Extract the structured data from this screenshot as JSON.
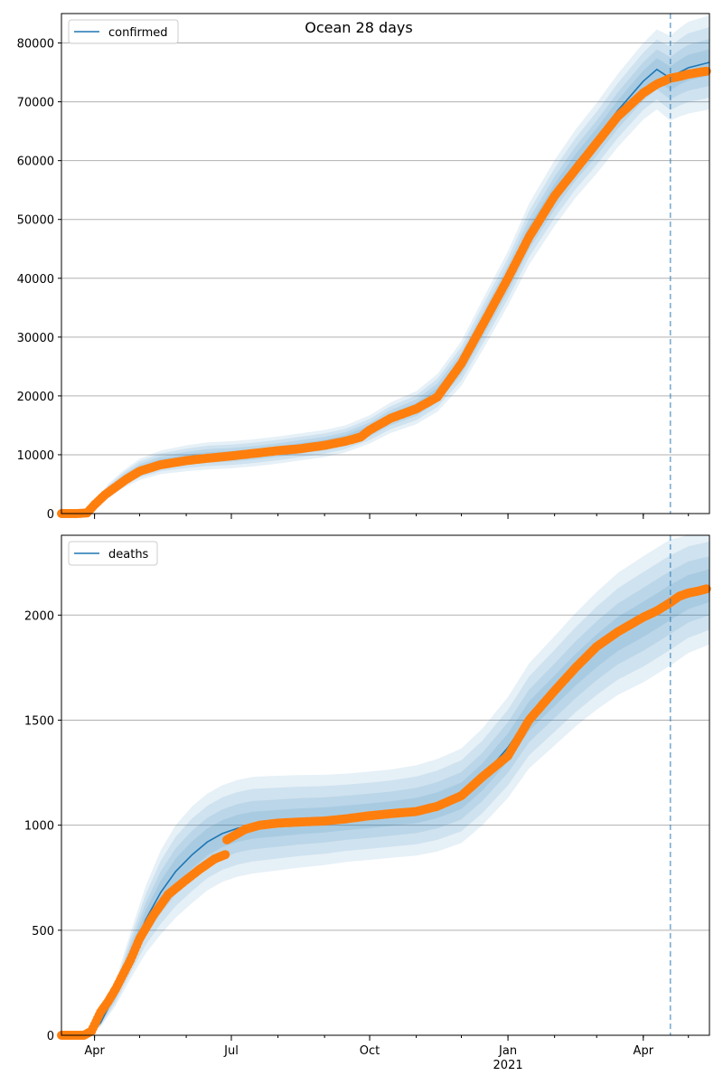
{
  "title": "Ocean 28 days",
  "colors": {
    "model_line": "#1f77b4",
    "observed": "#ff7f0e",
    "band": "#1f77b4",
    "grid": "#b0b0b0",
    "cutoff_line": "#1f77b4"
  },
  "chart_data": [
    {
      "type": "line",
      "panel": "top",
      "title": "Ocean 28 days",
      "legend": [
        "confirmed"
      ],
      "legend_position": "top-left",
      "grid": "y",
      "xlim": [
        "2020-03-10",
        "2021-05-15"
      ],
      "ylim": [
        0,
        85000
      ],
      "yticks": [
        0,
        10000,
        20000,
        30000,
        40000,
        50000,
        60000,
        70000,
        80000
      ],
      "xticks": [
        {
          "date": "2020-04-01",
          "label": "Apr",
          "sublabel": ""
        },
        {
          "date": "2020-07-01",
          "label": "Jul",
          "sublabel": ""
        },
        {
          "date": "2020-10-01",
          "label": "Oct",
          "sublabel": ""
        },
        {
          "date": "2021-01-01",
          "label": "Jan",
          "sublabel": "2021"
        },
        {
          "date": "2021-04-01",
          "label": "Apr",
          "sublabel": ""
        }
      ],
      "cutoff_date": "2021-04-19",
      "series": [
        {
          "name": "confirmed",
          "role": "model",
          "x": [
            "2020-03-10",
            "2020-03-25",
            "2020-04-01",
            "2020-04-10",
            "2020-04-20",
            "2020-05-01",
            "2020-05-15",
            "2020-06-01",
            "2020-06-15",
            "2020-07-01",
            "2020-07-15",
            "2020-08-01",
            "2020-08-15",
            "2020-09-01",
            "2020-09-15",
            "2020-10-01",
            "2020-10-15",
            "2020-11-01",
            "2020-11-15",
            "2020-12-01",
            "2020-12-15",
            "2021-01-01",
            "2021-01-15",
            "2021-02-01",
            "2021-02-15",
            "2021-03-01",
            "2021-03-15",
            "2021-04-01",
            "2021-04-10",
            "2021-04-19",
            "2021-04-25",
            "2021-05-01",
            "2021-05-15"
          ],
          "y": [
            0,
            0,
            1500,
            3800,
            5800,
            7500,
            8700,
            9400,
            9800,
            10000,
            10300,
            10800,
            11300,
            11900,
            12700,
            14300,
            16300,
            18000,
            20500,
            25500,
            32000,
            40000,
            47500,
            54500,
            59500,
            63800,
            68500,
            73500,
            75500,
            74000,
            75000,
            75800,
            76700
          ]
        },
        {
          "name": "",
          "role": "uncertainty-band",
          "x": [
            "2020-03-10",
            "2020-03-25",
            "2020-04-01",
            "2020-04-10",
            "2020-04-20",
            "2020-05-01",
            "2020-05-15",
            "2020-06-01",
            "2020-06-15",
            "2020-07-01",
            "2020-07-15",
            "2020-08-01",
            "2020-08-15",
            "2020-09-01",
            "2020-09-15",
            "2020-10-01",
            "2020-10-15",
            "2020-11-01",
            "2020-11-15",
            "2020-12-01",
            "2020-12-15",
            "2021-01-01",
            "2021-01-15",
            "2021-02-01",
            "2021-02-15",
            "2021-03-01",
            "2021-03-15",
            "2021-04-01",
            "2021-04-10",
            "2021-04-19",
            "2021-04-25",
            "2021-05-01",
            "2021-05-15"
          ],
          "outer_spread": [
            0,
            0,
            700,
            1200,
            1500,
            1800,
            2000,
            2200,
            2300,
            2300,
            2300,
            2300,
            2300,
            2300,
            2300,
            2400,
            2600,
            2800,
            3200,
            3800,
            4300,
            4600,
            5200,
            5600,
            5800,
            6000,
            6200,
            6500,
            6800,
            7200,
            7500,
            7800,
            8000
          ]
        },
        {
          "name": "",
          "role": "observed",
          "x": [
            "2020-03-10",
            "2020-03-20",
            "2020-03-27",
            "2020-04-01",
            "2020-04-08",
            "2020-04-15",
            "2020-04-22",
            "2020-05-01",
            "2020-05-15",
            "2020-06-01",
            "2020-06-15",
            "2020-07-01",
            "2020-07-15",
            "2020-08-01",
            "2020-08-15",
            "2020-09-01",
            "2020-09-15",
            "2020-09-25",
            "2020-10-01",
            "2020-10-15",
            "2020-11-01",
            "2020-11-15",
            "2020-12-01",
            "2020-12-15",
            "2021-01-01",
            "2021-01-15",
            "2021-02-01",
            "2021-02-15",
            "2021-03-01",
            "2021-03-15",
            "2021-04-01",
            "2021-04-10",
            "2021-04-19",
            "2021-04-25",
            "2021-05-01",
            "2021-05-08",
            "2021-05-13"
          ],
          "y": [
            0,
            0,
            100,
            1500,
            3200,
            4500,
            5800,
            7200,
            8300,
            9000,
            9400,
            9800,
            10200,
            10700,
            11000,
            11600,
            12300,
            13000,
            14200,
            16200,
            17800,
            19800,
            25500,
            32000,
            40000,
            47000,
            54000,
            58500,
            63000,
            67500,
            71500,
            73000,
            74000,
            74300,
            74700,
            75000,
            75200
          ]
        }
      ]
    },
    {
      "type": "line",
      "panel": "bottom",
      "legend": [
        "deaths"
      ],
      "legend_position": "top-left",
      "grid": "y",
      "xlim": [
        "2020-03-10",
        "2021-05-15"
      ],
      "ylim": [
        0,
        2380
      ],
      "yticks": [
        0,
        500,
        1000,
        1500,
        2000
      ],
      "xticks": [
        {
          "date": "2020-04-01",
          "label": "Apr",
          "sublabel": ""
        },
        {
          "date": "2020-07-01",
          "label": "Jul",
          "sublabel": ""
        },
        {
          "date": "2020-10-01",
          "label": "Oct",
          "sublabel": ""
        },
        {
          "date": "2021-01-01",
          "label": "Jan",
          "sublabel": "2021"
        },
        {
          "date": "2021-04-01",
          "label": "Apr",
          "sublabel": ""
        }
      ],
      "cutoff_date": "2021-04-19",
      "series": [
        {
          "name": "deaths",
          "role": "model",
          "x": [
            "2020-03-10",
            "2020-03-28",
            "2020-04-05",
            "2020-04-15",
            "2020-04-25",
            "2020-05-05",
            "2020-05-15",
            "2020-05-25",
            "2020-06-05",
            "2020-06-15",
            "2020-06-25",
            "2020-07-05",
            "2020-07-15",
            "2020-08-01",
            "2020-08-15",
            "2020-09-01",
            "2020-09-15",
            "2020-10-01",
            "2020-10-15",
            "2020-11-01",
            "2020-11-15",
            "2020-12-01",
            "2020-12-15",
            "2021-01-01",
            "2021-01-15",
            "2021-02-01",
            "2021-02-15",
            "2021-03-01",
            "2021-03-15",
            "2021-04-01",
            "2021-04-10",
            "2021-04-19",
            "2021-05-01",
            "2021-05-15"
          ],
          "y": [
            0,
            0,
            60,
            200,
            380,
            550,
            680,
            780,
            860,
            920,
            960,
            985,
            1000,
            1010,
            1018,
            1025,
            1035,
            1045,
            1055,
            1070,
            1095,
            1140,
            1230,
            1370,
            1520,
            1640,
            1740,
            1830,
            1910,
            1980,
            2020,
            2060,
            2110,
            2140
          ]
        },
        {
          "name": "",
          "role": "uncertainty-band",
          "x": [
            "2020-03-10",
            "2020-03-28",
            "2020-04-05",
            "2020-04-15",
            "2020-04-25",
            "2020-05-05",
            "2020-05-15",
            "2020-05-25",
            "2020-06-05",
            "2020-06-15",
            "2020-06-25",
            "2020-07-05",
            "2020-07-15",
            "2020-08-01",
            "2020-08-15",
            "2020-09-01",
            "2020-09-15",
            "2020-10-01",
            "2020-10-15",
            "2020-11-01",
            "2020-11-15",
            "2020-12-01",
            "2020-12-15",
            "2021-01-01",
            "2021-01-15",
            "2021-02-01",
            "2021-02-15",
            "2021-03-01",
            "2021-03-15",
            "2021-04-01",
            "2021-04-10",
            "2021-04-19",
            "2021-05-01",
            "2021-05-15"
          ],
          "outer_spread": [
            0,
            0,
            20,
            60,
            110,
            160,
            200,
            220,
            230,
            230,
            230,
            230,
            230,
            225,
            220,
            215,
            210,
            210,
            210,
            215,
            220,
            225,
            230,
            240,
            250,
            260,
            270,
            280,
            290,
            300,
            300,
            300,
            290,
            280
          ]
        },
        {
          "name": "",
          "role": "observed",
          "x": [
            "2020-03-10",
            "2020-03-25",
            "2020-03-30",
            "2020-04-05",
            "2020-04-10",
            "2020-04-15",
            "2020-04-20",
            "2020-04-25",
            "2020-05-01",
            "2020-05-10",
            "2020-05-20",
            "2020-06-01",
            "2020-06-10",
            "2020-06-20",
            "2020-06-27",
            "2020-06-28",
            "2020-07-10",
            "2020-07-20",
            "2020-08-01",
            "2020-08-15",
            "2020-09-01",
            "2020-09-15",
            "2020-10-01",
            "2020-10-15",
            "2020-11-01",
            "2020-11-15",
            "2020-12-01",
            "2020-12-15",
            "2021-01-01",
            "2021-01-15",
            "2021-02-01",
            "2021-02-15",
            "2021-03-01",
            "2021-03-15",
            "2021-04-01",
            "2021-04-10",
            "2021-04-19",
            "2021-04-25",
            "2021-05-01",
            "2021-05-08",
            "2021-05-13"
          ],
          "y": [
            0,
            0,
            20,
            110,
            160,
            220,
            290,
            360,
            460,
            570,
            670,
            740,
            790,
            840,
            860,
            930,
            980,
            1000,
            1010,
            1015,
            1020,
            1030,
            1045,
            1055,
            1065,
            1090,
            1140,
            1230,
            1330,
            1500,
            1640,
            1750,
            1850,
            1920,
            1990,
            2020,
            2060,
            2090,
            2105,
            2115,
            2125
          ]
        }
      ]
    }
  ]
}
